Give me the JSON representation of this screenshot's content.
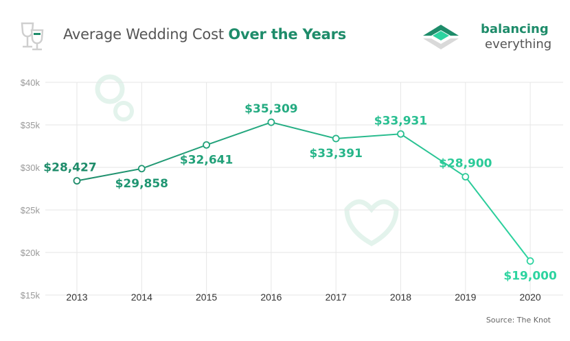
{
  "header": {
    "title_regular": "Average Wedding Cost ",
    "title_bold": "Over the Years",
    "icon": "wine-glasses-icon"
  },
  "brand": {
    "line1": "balancing",
    "line2": "everything",
    "logo": "balancing-everything-logo-icon"
  },
  "source": "Source: The Knot",
  "colors": {
    "accent": "#1e8c6a",
    "line_start": "#1e8c6a",
    "line_end": "#2dd4a0",
    "grid": "#e6e6e6",
    "axis_text": "#666666"
  },
  "chart_data": {
    "type": "line",
    "x": [
      "2013",
      "2014",
      "2015",
      "2016",
      "2017",
      "2018",
      "2019",
      "2020"
    ],
    "values": [
      28427,
      29858,
      32641,
      35309,
      33391,
      33931,
      28900,
      19000
    ],
    "data_labels": [
      "$28,427",
      "$29,858",
      "$32,641",
      "$35,309",
      "$33,391",
      "$33,931",
      "$28,900",
      "$19,000"
    ],
    "y_ticks": [
      15000,
      20000,
      25000,
      30000,
      35000,
      40000
    ],
    "y_tick_labels": [
      "$15k",
      "$20k",
      "$25k",
      "$30k",
      "$35k",
      "$40k"
    ],
    "ylim": [
      15000,
      40000
    ],
    "grid": true,
    "legend": "none"
  }
}
